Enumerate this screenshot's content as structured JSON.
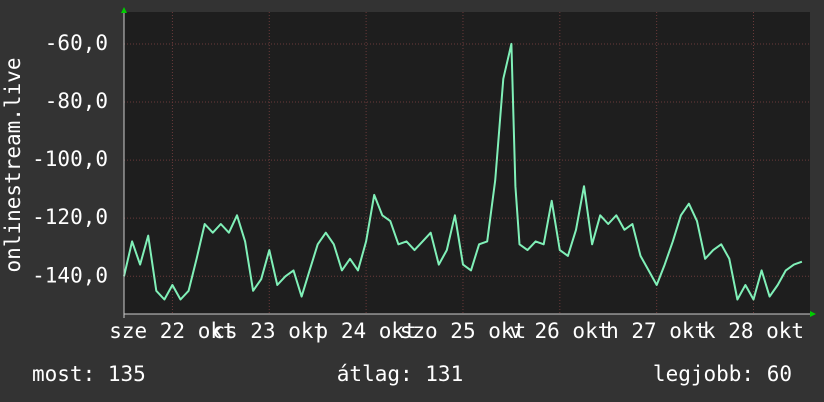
{
  "chart_data": {
    "type": "line",
    "y_label": "onlinestream.live",
    "x": [
      0,
      2,
      4,
      6,
      8,
      10,
      12,
      14,
      16,
      18,
      20,
      22,
      24,
      26,
      28,
      30,
      32,
      34,
      36,
      38,
      40,
      42,
      44,
      46,
      48,
      50,
      52,
      54,
      56,
      58,
      60,
      62,
      64,
      66,
      68,
      70,
      72,
      74,
      76,
      78,
      80,
      82,
      84,
      86,
      88,
      90,
      92,
      94,
      96,
      97,
      98,
      100,
      102,
      104,
      106,
      108,
      110,
      112,
      114,
      116,
      118,
      120,
      122,
      124,
      126,
      128,
      130,
      132,
      134,
      136,
      138,
      140,
      142,
      144,
      146,
      148,
      150,
      152,
      154,
      156,
      158,
      160,
      162,
      164,
      166,
      168
    ],
    "series": [
      {
        "name": "onlinestream.live",
        "color": "#80f0b8",
        "values": [
          -140,
          -128,
          -136,
          -126,
          -145,
          -148,
          -143,
          -148,
          -145,
          -134,
          -122,
          -125,
          -122,
          -125,
          -119,
          -128,
          -145,
          -141,
          -131,
          -143,
          -140,
          -138,
          -147,
          -138,
          -129,
          -125,
          -129,
          -138,
          -134,
          -138,
          -128,
          -112,
          -119,
          -121,
          -129,
          -128,
          -131,
          -128,
          -125,
          -136,
          -131,
          -119,
          -136,
          -138,
          -129,
          -128,
          -107,
          -72,
          -60,
          -109,
          -129,
          -131,
          -128,
          -129,
          -114,
          -131,
          -133,
          -124,
          -109,
          -129,
          -119,
          -122,
          -119,
          -124,
          -122,
          -133,
          -138,
          -143,
          -136,
          -128,
          -119,
          -115,
          -121,
          -134,
          -131,
          -129,
          -134,
          -148,
          -143,
          -148,
          -138,
          -147,
          -143,
          -138,
          -136,
          -135
        ]
      }
    ],
    "xlim": [
      0,
      170
    ],
    "xticks": [
      {
        "value": 12,
        "label": "sze 22 okt"
      },
      {
        "value": 36,
        "label": "cs 23 okt"
      },
      {
        "value": 60,
        "label": "p 24 okt"
      },
      {
        "value": 84,
        "label": "szo 25 okt"
      },
      {
        "value": 108,
        "label": "v 26 okt"
      },
      {
        "value": 132,
        "label": "h 27 okt"
      },
      {
        "value": 156,
        "label": "k 28 okt"
      }
    ],
    "ylim": [
      -153,
      -49
    ],
    "yticks": [
      {
        "value": -140,
        "label": "-140,0"
      },
      {
        "value": -120,
        "label": "-120,0"
      },
      {
        "value": -100,
        "label": "-100,0"
      },
      {
        "value": -80,
        "label": "-80,0"
      },
      {
        "value": -60,
        "label": "-60,0"
      }
    ],
    "grid": true,
    "footer": [
      "most: 135",
      "átlag: 131",
      "legjobb: 60"
    ]
  }
}
